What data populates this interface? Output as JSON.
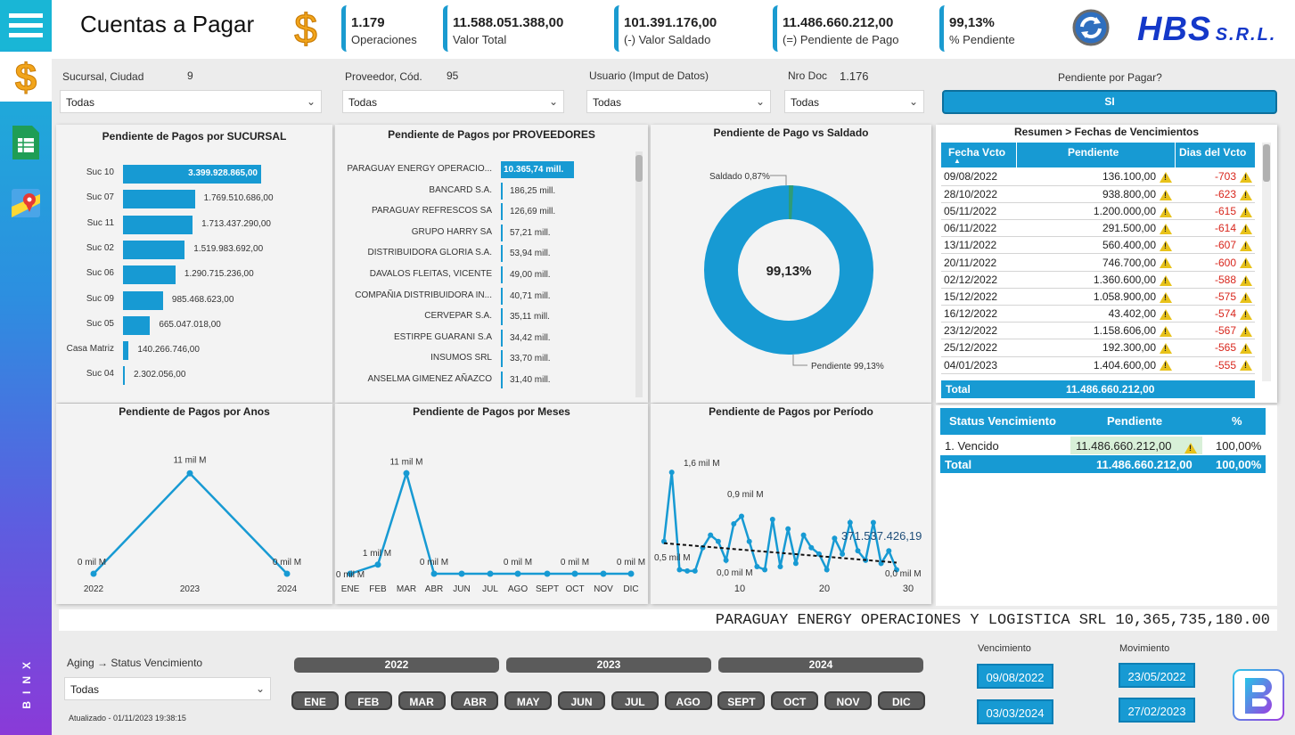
{
  "app": {
    "title": "Cuentas a Pagar",
    "logo_text": "HBS",
    "logo_suffix": "S.R.L.",
    "side_brand": "BINX",
    "updated": "Atualizado - 01/11/2023 19:38:15"
  },
  "kpis": [
    {
      "value": "1.179",
      "label": "Operaciones"
    },
    {
      "value": "11.588.051.388,00",
      "label": "Valor Total"
    },
    {
      "value": "101.391.176,00",
      "label": "(-) Valor Saldado"
    },
    {
      "value": "11.486.660.212,00",
      "label": "(=) Pendiente de Pago"
    },
    {
      "value": "99,13%",
      "label": "% Pendiente"
    }
  ],
  "filters": {
    "sucursal": {
      "label": "Sucursal, Ciudad",
      "count": "9",
      "value": "Todas"
    },
    "proveedor": {
      "label": "Proveedor, Cód.",
      "count": "95",
      "value": "Todas"
    },
    "usuario": {
      "label": "Usuario (Imput de Datos)",
      "value": "Todas"
    },
    "nrodoc": {
      "label": "Nro Doc",
      "count": "1.176",
      "value": "Todas"
    },
    "pendiente": {
      "label": "Pendiente por Pagar?",
      "value": "SI"
    },
    "aging": {
      "label": "Aging → Status Vencimiento",
      "value": "Todas"
    }
  },
  "sucursal_chart": {
    "title": "Pendiente de Pagos por SUCURSAL",
    "rows": [
      {
        "name": "Suc 10",
        "value": 3399928865,
        "label": "3.399.928.865,00"
      },
      {
        "name": "Suc 07",
        "value": 1769510686,
        "label": "1.769.510.686,00"
      },
      {
        "name": "Suc 11",
        "value": 1713437290,
        "label": "1.713.437.290,00"
      },
      {
        "name": "Suc 02",
        "value": 1519983692,
        "label": "1.519.983.692,00"
      },
      {
        "name": "Suc 06",
        "value": 1290715236,
        "label": "1.290.715.236,00"
      },
      {
        "name": "Suc 09",
        "value": 985468623,
        "label": "985.468.623,00"
      },
      {
        "name": "Suc 05",
        "value": 665047018,
        "label": "665.047.018,00"
      },
      {
        "name": "Casa Matriz",
        "value": 140266746,
        "label": "140.266.746,00"
      },
      {
        "name": "Suc 04",
        "value": 2302056,
        "label": "2.302.056,00"
      }
    ]
  },
  "proveedores_chart": {
    "title": "Pendiente de Pagos por PROVEEDORES",
    "rows": [
      {
        "name": "PARAGUAY ENERGY OPERACIO...",
        "value": 10365.74,
        "label": "10.365,74 mill."
      },
      {
        "name": "BANCARD S.A.",
        "value": 186.25,
        "label": "186,25 mill."
      },
      {
        "name": "PARAGUAY REFRESCOS SA",
        "value": 126.69,
        "label": "126,69 mill."
      },
      {
        "name": "GRUPO HARRY SA",
        "value": 57.21,
        "label": "57,21 mill."
      },
      {
        "name": "DISTRIBUIDORA GLORIA S.A.",
        "value": 53.94,
        "label": "53,94 mill."
      },
      {
        "name": "DAVALOS FLEITAS, VICENTE",
        "value": 49.0,
        "label": "49,00 mill."
      },
      {
        "name": "COMPAÑIA DISTRIBUIDORA IN...",
        "value": 40.71,
        "label": "40,71 mill."
      },
      {
        "name": "CERVEPAR S.A.",
        "value": 35.11,
        "label": "35,11 mill."
      },
      {
        "name": "ESTIRPE GUARANI S.A",
        "value": 34.42,
        "label": "34,42 mill."
      },
      {
        "name": "INSUMOS SRL",
        "value": 33.7,
        "label": "33,70 mill."
      },
      {
        "name": "ANSELMA GIMENEZ AÑAZCO",
        "value": 31.4,
        "label": "31,40 mill."
      }
    ]
  },
  "donut": {
    "title": "Pendiente de Pago vs Saldado",
    "center": "99,13%",
    "saldado_label": "Saldado 0,87%",
    "pendiente_label": "Pendiente 99,13%",
    "saldado_pct": 0.87,
    "pendiente_pct": 99.13
  },
  "vencimientos": {
    "title": "Resumen > Fechas de Vencimientos",
    "headers": [
      "Fecha Vcto",
      "Pendiente",
      "Dias del Vcto"
    ],
    "rows": [
      [
        "09/08/2022",
        "136.100,00",
        "-703"
      ],
      [
        "28/10/2022",
        "938.800,00",
        "-623"
      ],
      [
        "05/11/2022",
        "1.200.000,00",
        "-615"
      ],
      [
        "06/11/2022",
        "291.500,00",
        "-614"
      ],
      [
        "13/11/2022",
        "560.400,00",
        "-607"
      ],
      [
        "20/11/2022",
        "746.700,00",
        "-600"
      ],
      [
        "02/12/2022",
        "1.360.600,00",
        "-588"
      ],
      [
        "15/12/2022",
        "1.058.900,00",
        "-575"
      ],
      [
        "16/12/2022",
        "43.402,00",
        "-574"
      ],
      [
        "23/12/2022",
        "1.158.606,00",
        "-567"
      ],
      [
        "25/12/2022",
        "192.300,00",
        "-565"
      ],
      [
        "04/01/2023",
        "1.404.600,00",
        "-555"
      ]
    ],
    "total_label": "Total",
    "total_value": "11.486.660.212,00"
  },
  "status": {
    "headers": [
      "Status Vencimiento",
      "Pendiente",
      "%"
    ],
    "rows": [
      [
        "1. Vencido",
        "11.486.660.212,00",
        "100,00%"
      ]
    ],
    "total": [
      "Total",
      "11.486.660.212,00",
      "100,00%"
    ]
  },
  "chart_data": [
    {
      "type": "line",
      "title": "Pendiente de Pagos por Anos",
      "categories": [
        "2022",
        "2023",
        "2024"
      ],
      "values": [
        0,
        11,
        0
      ],
      "labels": [
        "0 mil M",
        "11 mil M",
        "0 mil M"
      ],
      "ylim": [
        0,
        12
      ]
    },
    {
      "type": "line",
      "title": "Pendiente de Pagos por Meses",
      "categories": [
        "ENE",
        "FEB",
        "MAR",
        "ABR",
        "JUN",
        "JUL",
        "AGO",
        "SEPT",
        "OCT",
        "NOV",
        "DIC"
      ],
      "values": [
        0,
        1,
        11,
        0,
        0,
        0,
        0,
        0,
        0,
        0,
        0
      ],
      "labels": [
        "0 mil M",
        "1 mil M",
        "11 mil M",
        "0 mil M",
        "",
        "",
        "0 mil M",
        "",
        "0 mil M",
        "",
        "0 mil M"
      ],
      "ylim": [
        0,
        12
      ]
    },
    {
      "type": "line",
      "title": "Pendiente de Pagos por Período",
      "x_ticks": [
        "10",
        "20",
        "30"
      ],
      "labels": {
        "max": "1,6 mil M",
        "mid": "0,9 mil M",
        "left": "0,5 mil M",
        "zero1": "0,0 mil M",
        "zero2": "0,0 mil M",
        "trend": "371.537.426,19"
      },
      "x": [
        1,
        2,
        3,
        4,
        5,
        6,
        7,
        8,
        9,
        10,
        11,
        12,
        13,
        14,
        15,
        16,
        17,
        18,
        19,
        20,
        21,
        22,
        23,
        24,
        25,
        26,
        27,
        28,
        29,
        30,
        31
      ],
      "values": [
        0.5,
        1.6,
        0.05,
        0.03,
        0.03,
        0.4,
        0.6,
        0.5,
        0.2,
        0.78,
        0.9,
        0.5,
        0.1,
        0.05,
        0.85,
        0.1,
        0.7,
        0.15,
        0.6,
        0.4,
        0.3,
        0.05,
        0.55,
        0.3,
        0.8,
        0.35,
        0.2,
        0.8,
        0.15,
        0.35,
        0.05
      ],
      "trend": [
        0.5,
        0.05
      ],
      "ylim": [
        0,
        1.8
      ]
    }
  ],
  "banner": "PARAGUAY ENERGY OPERACIONES Y LOGISTICA SRL 10,365,735,180.00",
  "years": [
    "2022",
    "2023",
    "2024"
  ],
  "months": [
    "ENE",
    "FEB",
    "MAR",
    "ABR",
    "MAY",
    "JUN",
    "JUL",
    "AGO",
    "SEPT",
    "OCT",
    "NOV",
    "DIC"
  ],
  "dates": {
    "vencimiento_label": "Vencimiento",
    "movimiento_label": "Movimiento",
    "venc_from": "09/08/2022",
    "venc_to": "03/03/2024",
    "mov_from": "23/05/2022",
    "mov_to": "27/02/2023"
  },
  "colors": {
    "accent": "#179ad3",
    "dark": "#5b5b5b",
    "red": "#d8261c",
    "gold": "#f39c12"
  }
}
